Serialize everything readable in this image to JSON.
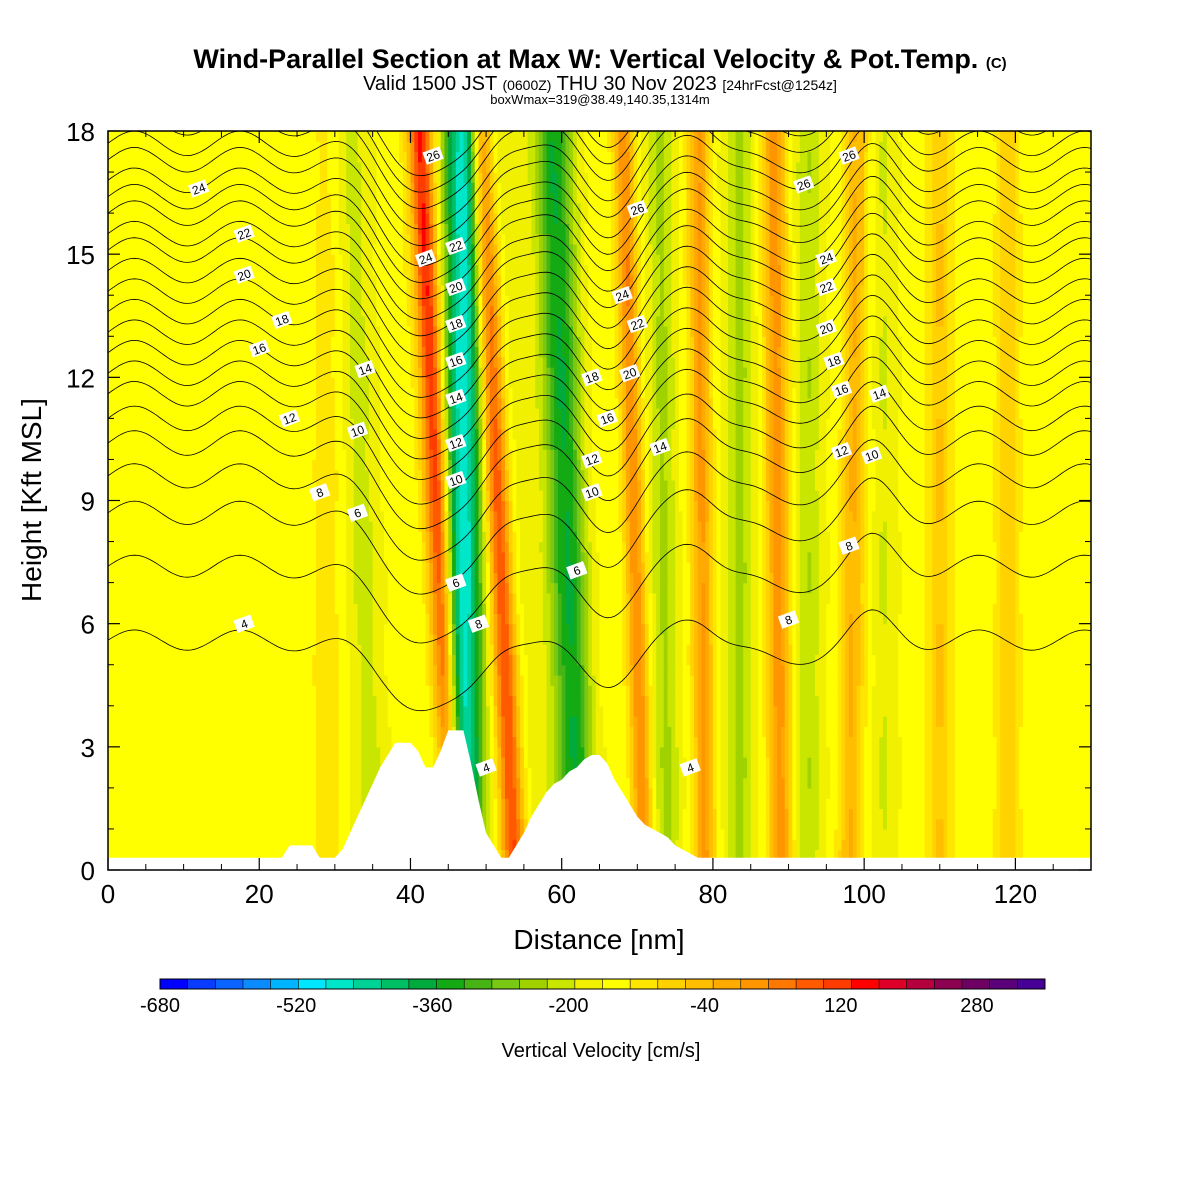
{
  "header": {
    "title_main": "Wind-Parallel Section at Max W: Vertical Velocity & Pot.Temp.",
    "title_tag": "(C)",
    "valid_prefix": "Valid 1500 JST",
    "valid_utc": "(0600Z)",
    "valid_date": "THU 30 Nov 2023",
    "forecast_tag": "[24hrFcst@1254z]",
    "boxinfo": "boxWmax=319@38.49,140.35,1314m"
  },
  "chart_data": {
    "type": "heatmap",
    "xlabel": "Distance [nm]",
    "ylabel": "Height [Kft MSL]",
    "xlim": [
      0,
      130
    ],
    "ylim": [
      0,
      18
    ],
    "xticks": [
      "0",
      "20",
      "40",
      "60",
      "80",
      "100",
      "120"
    ],
    "yticks": [
      "0",
      "3",
      "6",
      "9",
      "12",
      "15",
      "18"
    ],
    "colorbar": {
      "label": "Vertical Velocity [cm/s]",
      "tick_labels": [
        "-680",
        "-520",
        "-360",
        "-200",
        "-40",
        "120",
        "280"
      ],
      "min": -680,
      "max": 360,
      "step": 40,
      "colors": [
        "#0000ff",
        "#0a3cff",
        "#0a64ff",
        "#0a8cff",
        "#00b4ff",
        "#00e6ff",
        "#00e6c8",
        "#00d296",
        "#00be64",
        "#00aa3c",
        "#14aa14",
        "#46b414",
        "#78c814",
        "#a0d200",
        "#c8e600",
        "#f0f000",
        "#ffff00",
        "#ffe600",
        "#ffd200",
        "#ffbe00",
        "#ffaa00",
        "#ff9600",
        "#ff7800",
        "#ff5a00",
        "#ff3c00",
        "#ff0000",
        "#dc0028",
        "#b4003c",
        "#8c0050",
        "#6e0064",
        "#5a0078",
        "#460096"
      ]
    },
    "wave_bands": [
      {
        "x": 43.5,
        "slope": -0.25,
        "w": 1.6,
        "amp": 360
      },
      {
        "x": 47.0,
        "slope": 0.0,
        "w": 2.5,
        "amp": -420
      },
      {
        "x": 51.5,
        "slope": -0.25,
        "w": 1.6,
        "amp": 320
      },
      {
        "x": 54.5,
        "slope": -0.3,
        "w": 3.0,
        "amp": -40
      },
      {
        "x": 60.5,
        "slope": -0.2,
        "w": 2.5,
        "amp": -250
      },
      {
        "x": 69.5,
        "slope": -0.15,
        "w": 1.3,
        "amp": 230
      },
      {
        "x": 73.5,
        "slope": -0.05,
        "w": 1.8,
        "amp": -110
      },
      {
        "x": 78.5,
        "slope": -0.05,
        "w": 1.4,
        "amp": 200
      },
      {
        "x": 83.5,
        "slope": 0.0,
        "w": 2.0,
        "amp": -110
      },
      {
        "x": 88.5,
        "slope": -0.05,
        "w": 1.6,
        "amp": 210
      },
      {
        "x": 92.5,
        "slope": 0.0,
        "w": 1.8,
        "amp": -100
      },
      {
        "x": 98.5,
        "slope": 0.05,
        "w": 1.5,
        "amp": 150
      },
      {
        "x": 102.5,
        "slope": 0.0,
        "w": 1.5,
        "amp": -60
      },
      {
        "x": 110.0,
        "slope": 0.0,
        "w": 1.6,
        "amp": 100
      },
      {
        "x": 119.0,
        "slope": 0.0,
        "w": 1.6,
        "amp": 80
      },
      {
        "x": 33.5,
        "slope": -0.2,
        "w": 2.5,
        "amp": -60
      },
      {
        "x": 29.0,
        "slope": 0.0,
        "w": 2.0,
        "amp": 40
      }
    ],
    "terrain": {
      "x": [
        0,
        23,
        24,
        27,
        28,
        30,
        31,
        32,
        33,
        34,
        35,
        36,
        37,
        38,
        39,
        40,
        41,
        42,
        43,
        44,
        45,
        46,
        47,
        48,
        49,
        50,
        51,
        52,
        53,
        54,
        55,
        56,
        57,
        58,
        59,
        60,
        61,
        62,
        63,
        64,
        65,
        66,
        67,
        68,
        69,
        70,
        71,
        72,
        73,
        74,
        75,
        76,
        78,
        130
      ],
      "h": [
        0.3,
        0.3,
        0.6,
        0.6,
        0.3,
        0.3,
        0.5,
        0.9,
        1.3,
        1.7,
        2.1,
        2.5,
        2.8,
        3.1,
        3.1,
        3.1,
        2.9,
        2.5,
        2.5,
        2.9,
        3.4,
        3.4,
        3.4,
        2.6,
        1.7,
        0.9,
        0.6,
        0.3,
        0.3,
        0.6,
        0.9,
        1.3,
        1.6,
        1.9,
        2.1,
        2.2,
        2.4,
        2.5,
        2.7,
        2.8,
        2.8,
        2.6,
        2.2,
        1.9,
        1.6,
        1.3,
        1.1,
        1.0,
        0.9,
        0.8,
        0.6,
        0.5,
        0.3,
        0.3
      ]
    },
    "theta_contours": {
      "levels": [
        4,
        5,
        6,
        7,
        8,
        9,
        10,
        11,
        12,
        13,
        14,
        15,
        16,
        17,
        18,
        19,
        20,
        21,
        22,
        23,
        24,
        25,
        26
      ],
      "labeled": [
        4,
        6,
        8,
        10,
        12,
        14,
        16,
        18,
        20,
        22,
        24,
        26
      ],
      "base_heights_kft": [
        5.6,
        7.4,
        8.7,
        9.6,
        10.4,
        11.0,
        11.6,
        12.1,
        12.6,
        13.1,
        13.6,
        14.1,
        14.6,
        15.1,
        15.5,
        16.0,
        16.4,
        16.8,
        17.3,
        17.7,
        18.2,
        18.6,
        19.0
      ],
      "labels": [
        {
          "level": 4,
          "at": [
            18,
            6.0
          ]
        },
        {
          "level": 4,
          "at": [
            50,
            2.5
          ]
        },
        {
          "level": 4,
          "at": [
            77,
            2.5
          ]
        },
        {
          "level": 6,
          "at": [
            33,
            8.7
          ]
        },
        {
          "level": 6,
          "at": [
            46,
            7.0
          ]
        },
        {
          "level": 6,
          "at": [
            62,
            7.3
          ]
        },
        {
          "level": 8,
          "at": [
            28,
            9.2
          ]
        },
        {
          "level": 8,
          "at": [
            49,
            6.0
          ]
        },
        {
          "level": 8,
          "at": [
            90,
            6.1
          ]
        },
        {
          "level": 8,
          "at": [
            98,
            7.9
          ]
        },
        {
          "level": 10,
          "at": [
            33,
            10.7
          ]
        },
        {
          "level": 10,
          "at": [
            46,
            9.5
          ]
        },
        {
          "level": 10,
          "at": [
            64,
            9.2
          ]
        },
        {
          "level": 10,
          "at": [
            101,
            10.1
          ]
        },
        {
          "level": 12,
          "at": [
            24,
            11.0
          ]
        },
        {
          "level": 12,
          "at": [
            46,
            10.4
          ]
        },
        {
          "level": 12,
          "at": [
            64,
            10.0
          ]
        },
        {
          "level": 12,
          "at": [
            97,
            10.2
          ]
        },
        {
          "level": 14,
          "at": [
            34,
            12.2
          ]
        },
        {
          "level": 14,
          "at": [
            46,
            11.5
          ]
        },
        {
          "level": 14,
          "at": [
            73,
            10.3
          ]
        },
        {
          "level": 14,
          "at": [
            102,
            11.6
          ]
        },
        {
          "level": 16,
          "at": [
            20,
            12.7
          ]
        },
        {
          "level": 16,
          "at": [
            46,
            12.4
          ]
        },
        {
          "level": 16,
          "at": [
            66,
            11.0
          ]
        },
        {
          "level": 16,
          "at": [
            97,
            11.7
          ]
        },
        {
          "level": 18,
          "at": [
            23,
            13.4
          ]
        },
        {
          "level": 18,
          "at": [
            46,
            13.3
          ]
        },
        {
          "level": 18,
          "at": [
            64,
            12.0
          ]
        },
        {
          "level": 18,
          "at": [
            96,
            12.4
          ]
        },
        {
          "level": 20,
          "at": [
            18,
            14.5
          ]
        },
        {
          "level": 20,
          "at": [
            46,
            14.2
          ]
        },
        {
          "level": 20,
          "at": [
            69,
            12.1
          ]
        },
        {
          "level": 20,
          "at": [
            95,
            13.2
          ]
        },
        {
          "level": 22,
          "at": [
            18,
            15.5
          ]
        },
        {
          "level": 22,
          "at": [
            46,
            15.2
          ]
        },
        {
          "level": 22,
          "at": [
            70,
            13.3
          ]
        },
        {
          "level": 22,
          "at": [
            95,
            14.2
          ]
        },
        {
          "level": 24,
          "at": [
            12,
            16.6
          ]
        },
        {
          "level": 24,
          "at": [
            42,
            14.9
          ]
        },
        {
          "level": 24,
          "at": [
            68,
            14.0
          ]
        },
        {
          "level": 24,
          "at": [
            95,
            14.9
          ]
        },
        {
          "level": 26,
          "at": [
            43,
            17.4
          ]
        },
        {
          "level": 26,
          "at": [
            70,
            16.1
          ]
        },
        {
          "level": 26,
          "at": [
            92,
            16.7
          ]
        },
        {
          "level": 26,
          "at": [
            98,
            17.4
          ]
        }
      ]
    }
  }
}
